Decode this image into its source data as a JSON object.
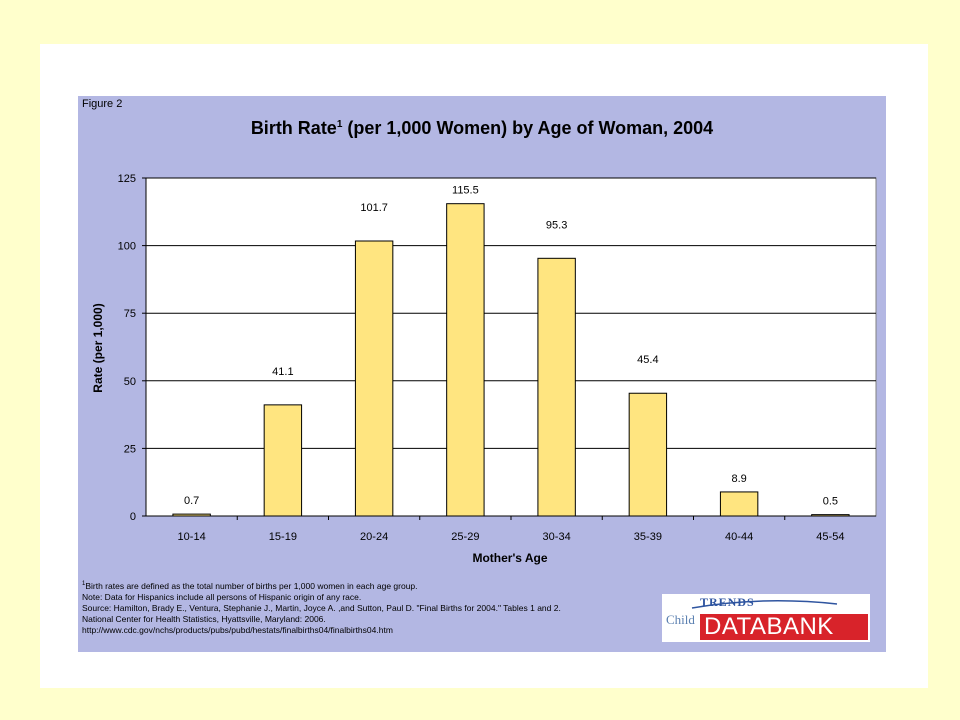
{
  "figure_label": "Figure 2",
  "title_main": "Birth Rate",
  "title_sup": "1",
  "title_rest": " (per 1,000 Women) by Age of Woman, 2004",
  "chart_data": {
    "type": "bar",
    "categories": [
      "10-14",
      "15-19",
      "20-24",
      "25-29",
      "30-34",
      "35-39",
      "40-44",
      "45-54"
    ],
    "values": [
      0.7,
      41.1,
      101.7,
      115.5,
      95.3,
      45.4,
      8.9,
      0.5
    ],
    "data_labels": [
      "0.7",
      "41.1",
      "101.7",
      "115.5",
      "95.3",
      "45.4",
      "8.9",
      "0.5"
    ],
    "title": "Birth Rate (per 1,000 Women) by Age of Woman, 2004",
    "xlabel": "Mother's Age",
    "ylabel": "Rate (per 1,000)",
    "ylim": [
      0,
      125
    ],
    "yticks": [
      0,
      25,
      50,
      75,
      100,
      125
    ],
    "grid": true,
    "bar_color": "#FFE580",
    "plot_background": "#FFFFFF"
  },
  "footnotes": {
    "line1_sup": "1",
    "line1": "Birth rates are defined as the total number of births per 1,000 women in each age group.",
    "line2": "Note: Data for Hispanics include all persons of Hispanic origin of any race.",
    "line3": "Source:  Hamilton, Brady E., Ventura, Stephanie J., Martin, Joyce A. ,and Sutton, Paul D. \"Final Births for 2004.\" Tables 1 and 2.",
    "line4": "National Center for Health Statistics, Hyattsville, Maryland: 2006.",
    "line5": "http://www.cdc.gov/nchs/products/pubs/pubd/hestats/finalbirths04/finalbirths04.htm"
  },
  "logo": {
    "child": "Child",
    "trends": "TRENDS",
    "databank": "DATABANK"
  }
}
